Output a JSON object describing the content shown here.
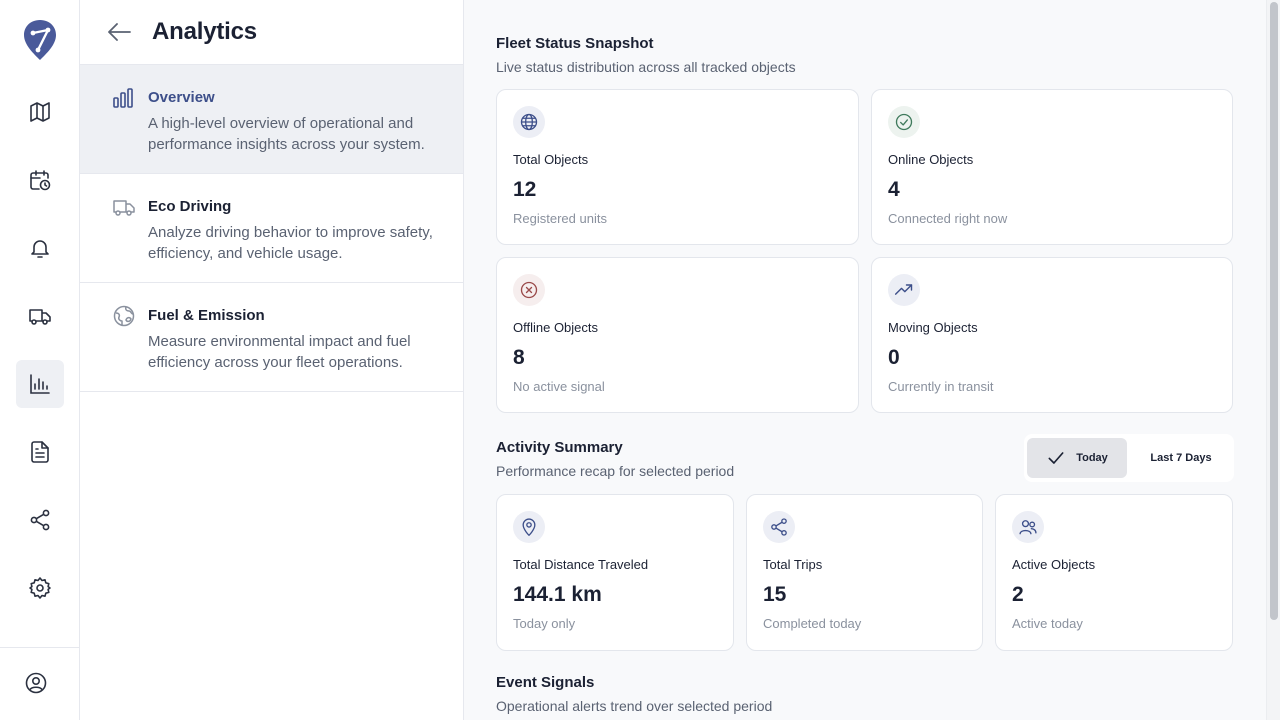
{
  "app": {
    "logo_icon": "brand-logo-icon"
  },
  "rail": {
    "items": [
      {
        "name": "map-icon",
        "active": false
      },
      {
        "name": "calendar-clock-icon",
        "active": false
      },
      {
        "name": "bell-icon",
        "active": false
      },
      {
        "name": "truck-icon",
        "active": false
      },
      {
        "name": "chart-icon",
        "active": true
      },
      {
        "name": "document-icon",
        "active": false
      },
      {
        "name": "share-icon",
        "active": false
      },
      {
        "name": "gear-icon",
        "active": false
      },
      {
        "name": "user-circle-icon",
        "active": false
      }
    ]
  },
  "panel": {
    "title": "Analytics",
    "items": [
      {
        "title": "Overview",
        "description": "A high-level overview of operational and performance insights across your system.",
        "icon": "bar-chart-icon",
        "active": true
      },
      {
        "title": "Eco Driving",
        "description": "Analyze driving behavior to improve safety, efficiency, and vehicle usage.",
        "icon": "truck-icon",
        "active": false
      },
      {
        "title": "Fuel & Emission",
        "description": "Measure environmental impact and fuel efficiency across your fleet operations.",
        "icon": "globe-leaf-icon",
        "active": false
      }
    ]
  },
  "fleet": {
    "title": "Fleet Status Snapshot",
    "subtitle": "Live status distribution across all tracked objects",
    "cards": [
      {
        "label": "Total Objects",
        "value": "12",
        "note": "Registered units",
        "icon": "globe-icon",
        "color": "#3d4f8a"
      },
      {
        "label": "Online Objects",
        "value": "4",
        "note": "Connected right now",
        "icon": "check-circle-icon",
        "color": "#3f7a5c"
      },
      {
        "label": "Offline Objects",
        "value": "8",
        "note": "No active signal",
        "icon": "x-circle-icon",
        "color": "#9a4a4a"
      },
      {
        "label": "Moving Objects",
        "value": "0",
        "note": "Currently in transit",
        "icon": "trending-up-icon",
        "color": "#3d4f8a"
      }
    ]
  },
  "activity": {
    "title": "Activity Summary",
    "subtitle": "Performance recap for selected period",
    "toggle": {
      "today": "Today",
      "week": "Last 7 Days",
      "selected": "today"
    },
    "cards": [
      {
        "label": "Total Distance Traveled",
        "value": "144.1 km",
        "note": "Today only",
        "icon": "location-pin-icon"
      },
      {
        "label": "Total Trips",
        "value": "15",
        "note": "Completed today",
        "icon": "share-nodes-icon"
      },
      {
        "label": "Active Objects",
        "value": "2",
        "note": "Active today",
        "icon": "users-icon"
      }
    ]
  },
  "events": {
    "title": "Event Signals",
    "subtitle": "Operational alerts trend over selected period"
  }
}
